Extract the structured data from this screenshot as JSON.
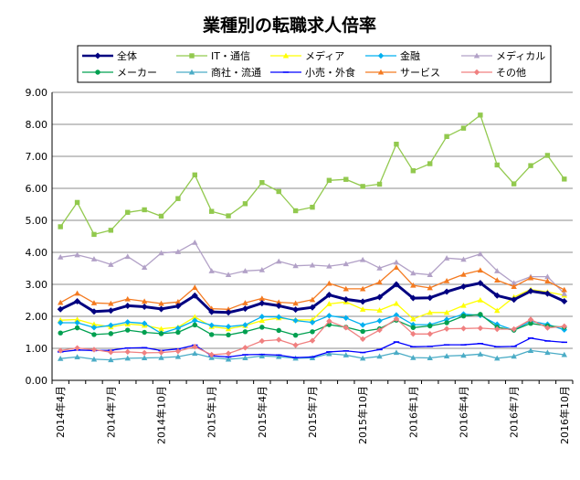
{
  "chart_data": {
    "type": "line",
    "title": "業種別の転職求人倍率",
    "xlabel": "",
    "ylabel": "",
    "ylim": [
      0,
      9
    ],
    "yticks": [
      "0.00",
      "1.00",
      "2.00",
      "3.00",
      "4.00",
      "5.00",
      "6.00",
      "7.00",
      "8.00",
      "9.00"
    ],
    "grid": "horizontal",
    "legend_position": "top",
    "x": [
      "2014年4月",
      "2014年5月",
      "2014年6月",
      "2014年7月",
      "2014年8月",
      "2014年9月",
      "2014年10月",
      "2014年11月",
      "2014年12月",
      "2015年1月",
      "2015年2月",
      "2015年3月",
      "2015年4月",
      "2015年5月",
      "2015年6月",
      "2015年7月",
      "2015年8月",
      "2015年9月",
      "2015年10月",
      "2015年11月",
      "2015年12月",
      "2016年1月",
      "2016年2月",
      "2016年3月",
      "2016年4月",
      "2016年5月",
      "2016年6月",
      "2016年7月",
      "2016年8月",
      "2016年9月",
      "2016年10月"
    ],
    "xtick_labels": [
      "2014年4月",
      "",
      "",
      "2014年7月",
      "",
      "",
      "2014年10月",
      "",
      "",
      "2015年1月",
      "",
      "",
      "2015年4月",
      "",
      "",
      "2015年7月",
      "",
      "",
      "2015年10月",
      "",
      "",
      "2016年1月",
      "",
      "",
      "2016年4月",
      "",
      "",
      "2016年7月",
      "",
      "",
      "2016年10月"
    ],
    "series": [
      {
        "name": "全体",
        "color": "#000080",
        "marker": "diamond",
        "width": 3,
        "values": [
          2.22,
          2.47,
          2.15,
          2.18,
          2.33,
          2.3,
          2.23,
          2.32,
          2.65,
          2.14,
          2.12,
          2.24,
          2.41,
          2.33,
          2.21,
          2.28,
          2.67,
          2.53,
          2.46,
          2.6,
          3.0,
          2.57,
          2.58,
          2.77,
          2.93,
          3.04,
          2.65,
          2.52,
          2.79,
          2.71,
          2.47
        ]
      },
      {
        "name": "IT・通信",
        "color": "#92C94E",
        "marker": "square",
        "width": 1.3,
        "values": [
          4.8,
          5.56,
          4.56,
          4.69,
          5.25,
          5.33,
          5.13,
          5.68,
          6.42,
          5.28,
          5.14,
          5.52,
          6.18,
          5.9,
          5.3,
          5.41,
          6.25,
          6.28,
          6.06,
          6.13,
          7.38,
          6.55,
          6.77,
          7.62,
          7.88,
          8.29,
          6.73,
          6.14,
          6.71,
          7.03,
          6.29
        ]
      },
      {
        "name": "メディア",
        "color": "#FFFF00",
        "marker": "triangle",
        "width": 1.3,
        "values": [
          1.88,
          1.9,
          1.75,
          1.67,
          1.76,
          1.72,
          1.61,
          1.66,
          1.98,
          1.68,
          1.61,
          1.71,
          1.87,
          1.95,
          1.89,
          1.89,
          2.39,
          2.45,
          2.22,
          2.19,
          2.4,
          1.92,
          2.12,
          2.12,
          2.34,
          2.51,
          2.18,
          2.6,
          2.84,
          2.76,
          2.66
        ]
      },
      {
        "name": "金融",
        "color": "#00B0F0",
        "marker": "diamond",
        "width": 1.3,
        "values": [
          1.8,
          1.8,
          1.65,
          1.72,
          1.82,
          1.78,
          1.47,
          1.63,
          1.87,
          1.72,
          1.68,
          1.73,
          1.99,
          1.98,
          1.87,
          1.81,
          2.02,
          1.95,
          1.73,
          1.86,
          2.04,
          1.74,
          1.74,
          1.9,
          2.07,
          2.03,
          1.75,
          1.57,
          1.85,
          1.75,
          1.58
        ]
      },
      {
        "name": "メディカル",
        "color": "#B2A1C7",
        "marker": "triangle",
        "width": 1.3,
        "values": [
          3.85,
          3.92,
          3.79,
          3.62,
          3.87,
          3.53,
          3.98,
          4.02,
          4.31,
          3.42,
          3.3,
          3.42,
          3.45,
          3.72,
          3.58,
          3.6,
          3.57,
          3.64,
          3.77,
          3.51,
          3.69,
          3.35,
          3.3,
          3.82,
          3.78,
          3.95,
          3.42,
          3.04,
          3.24,
          3.24,
          2.71
        ]
      },
      {
        "name": "メーカー",
        "color": "#00A050",
        "marker": "circle",
        "width": 1.3,
        "values": [
          1.48,
          1.64,
          1.43,
          1.46,
          1.57,
          1.5,
          1.46,
          1.5,
          1.73,
          1.43,
          1.42,
          1.52,
          1.66,
          1.56,
          1.41,
          1.52,
          1.74,
          1.66,
          1.53,
          1.61,
          1.88,
          1.65,
          1.7,
          1.8,
          2.01,
          2.06,
          1.66,
          1.57,
          1.78,
          1.7,
          1.66
        ]
      },
      {
        "name": "商社・流通",
        "color": "#4BACC6",
        "marker": "triangle",
        "width": 1.3,
        "values": [
          0.68,
          0.73,
          0.66,
          0.64,
          0.69,
          0.7,
          0.71,
          0.74,
          0.84,
          0.71,
          0.66,
          0.7,
          0.76,
          0.74,
          0.69,
          0.7,
          0.83,
          0.79,
          0.69,
          0.75,
          0.87,
          0.71,
          0.7,
          0.76,
          0.78,
          0.82,
          0.69,
          0.75,
          0.93,
          0.87,
          0.8
        ]
      },
      {
        "name": "小売・外食",
        "color": "#0000FF",
        "marker": "dash",
        "width": 1.3,
        "values": [
          0.89,
          0.95,
          0.93,
          0.94,
          1.01,
          1.02,
          0.93,
          0.98,
          1.1,
          0.77,
          0.73,
          0.8,
          0.81,
          0.79,
          0.71,
          0.73,
          0.89,
          0.92,
          0.87,
          0.96,
          1.2,
          1.05,
          1.06,
          1.11,
          1.11,
          1.15,
          1.05,
          1.06,
          1.32,
          1.23,
          1.19
        ]
      },
      {
        "name": "サービス",
        "color": "#F47A20",
        "marker": "triangle",
        "width": 1.3,
        "values": [
          2.43,
          2.72,
          2.42,
          2.4,
          2.54,
          2.47,
          2.4,
          2.45,
          2.9,
          2.24,
          2.22,
          2.42,
          2.56,
          2.44,
          2.41,
          2.52,
          3.03,
          2.86,
          2.86,
          3.07,
          3.53,
          2.97,
          2.89,
          3.11,
          3.31,
          3.44,
          3.13,
          2.93,
          3.2,
          3.1,
          2.83
        ]
      },
      {
        "name": "その他",
        "color": "#F08080",
        "marker": "diamond",
        "width": 1.3,
        "values": [
          0.93,
          1.01,
          0.96,
          0.88,
          0.89,
          0.86,
          0.87,
          0.91,
          1.05,
          0.8,
          0.84,
          1.02,
          1.23,
          1.27,
          1.1,
          1.24,
          1.85,
          1.65,
          1.29,
          1.57,
          1.92,
          1.45,
          1.45,
          1.61,
          1.62,
          1.63,
          1.6,
          1.6,
          1.9,
          1.64,
          1.69
        ]
      }
    ]
  }
}
